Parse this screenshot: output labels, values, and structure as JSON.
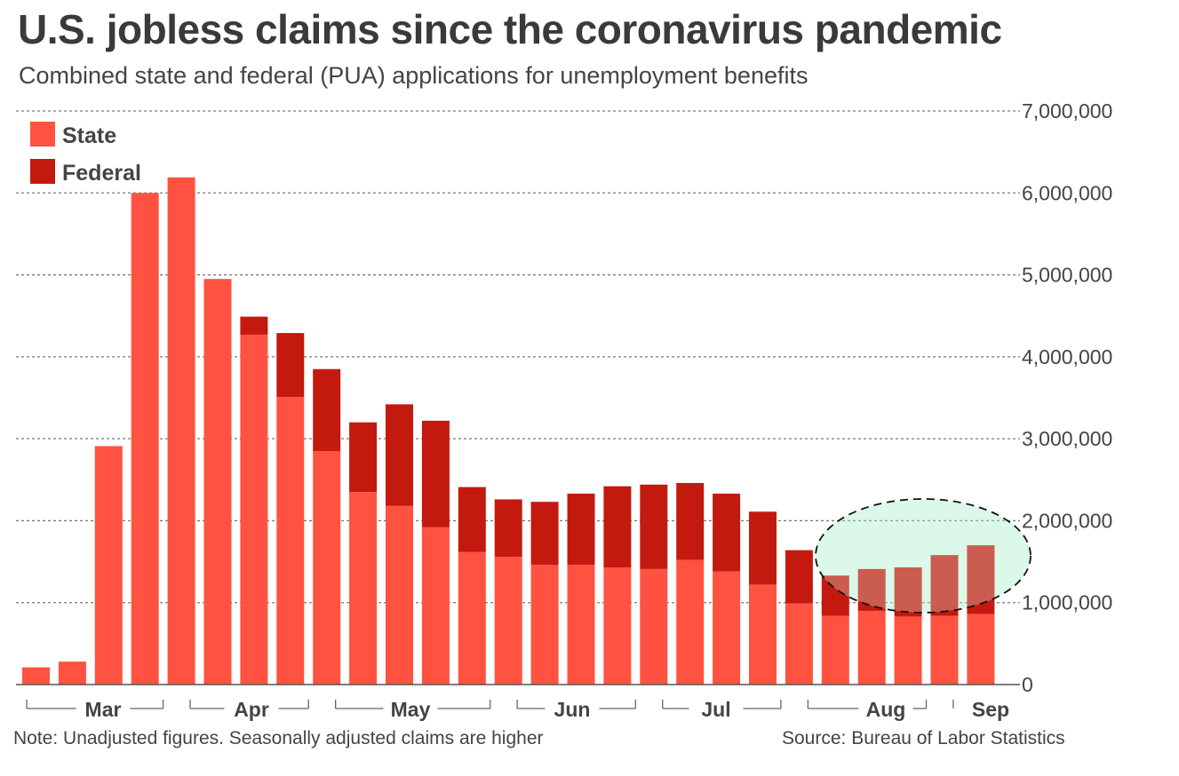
{
  "title": "U.S. jobless claims since the coronavirus pandemic",
  "subtitle": "Combined state and federal (PUA) applications for unemployment benefits",
  "note": "Note: Unadjusted figures. Seasonally adjusted claims are higher",
  "source": "Source: Bureau of Labor Statistics",
  "colors": {
    "state": "#ff5240",
    "federal": "#c4190f",
    "highlight": "#dcf8e9"
  },
  "chart_data": {
    "type": "bar",
    "stacked": true,
    "grid": true,
    "legend_position": "top-left",
    "ylim": [
      0,
      7000000
    ],
    "yticks": [
      0,
      1000000,
      2000000,
      3000000,
      4000000,
      5000000,
      6000000,
      7000000
    ],
    "ytick_labels": [
      "0",
      "1,000,000",
      "2,000,000",
      "3,000,000",
      "4,000,000",
      "5,000,000",
      "6,000,000",
      "7,000,000"
    ],
    "month_labels": [
      "Mar",
      "Apr",
      "May",
      "Jun",
      "Jul",
      "Aug",
      "Sep"
    ],
    "bar_count": 27,
    "series": [
      {
        "name": "State",
        "values": [
          210000,
          280000,
          2910000,
          6000000,
          6190000,
          4950000,
          4270000,
          3510000,
          2850000,
          2350000,
          2180000,
          1920000,
          1620000,
          1560000,
          1460000,
          1460000,
          1430000,
          1410000,
          1520000,
          1380000,
          1220000,
          990000,
          840000,
          900000,
          830000,
          840000,
          860000
        ]
      },
      {
        "name": "Federal",
        "values": [
          0,
          0,
          0,
          0,
          0,
          0,
          220000,
          780000,
          1000000,
          850000,
          1240000,
          1300000,
          790000,
          700000,
          770000,
          870000,
          990000,
          1030000,
          940000,
          950000,
          890000,
          650000,
          490000,
          510000,
          600000,
          740000,
          840000
        ]
      }
    ],
    "annotation": "dashed ellipse highlighting the last five weeks (Aug-Sep)"
  }
}
